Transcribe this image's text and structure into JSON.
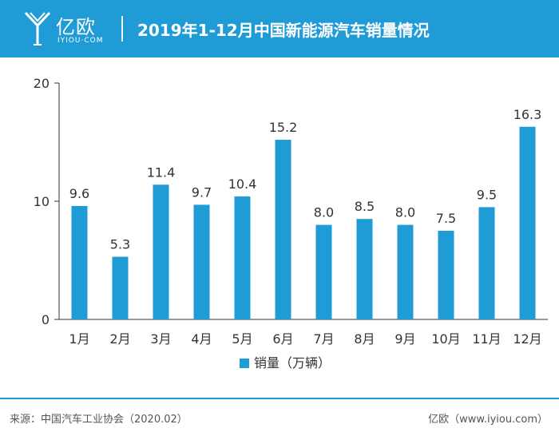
{
  "header": {
    "logo_cn": "亿欧",
    "logo_en": "IYIOU·COM",
    "title": "2019年1-12月中国新能源汽车销量情况"
  },
  "footer": {
    "source": "来源：中国汽车工业协会（2020.02）",
    "site": "亿欧（www.iyiou.com）"
  },
  "colors": {
    "brand": "#1f9bd6",
    "bar": "#1f9bd6",
    "axis": "#333333"
  },
  "chart_data": {
    "type": "bar",
    "title": "",
    "xlabel": "",
    "ylabel": "",
    "categories": [
      "1月",
      "2月",
      "3月",
      "4月",
      "5月",
      "6月",
      "7月",
      "8月",
      "9月",
      "10月",
      "11月",
      "12月"
    ],
    "series": [
      {
        "name": "销量（万辆）",
        "values": [
          9.6,
          5.3,
          11.4,
          9.7,
          10.4,
          15.2,
          8.0,
          8.5,
          8.0,
          7.5,
          9.5,
          16.3
        ]
      }
    ],
    "value_labels": [
      "9.6",
      "5.3",
      "11.4",
      "9.7",
      "10.4",
      "15.2",
      "8.0",
      "8.5",
      "8.0",
      "7.5",
      "9.5",
      "16.3"
    ],
    "yticks": [
      "0",
      "10",
      "20"
    ],
    "ylim": [
      0,
      20
    ],
    "grid": false,
    "legend": "bottom-center"
  }
}
